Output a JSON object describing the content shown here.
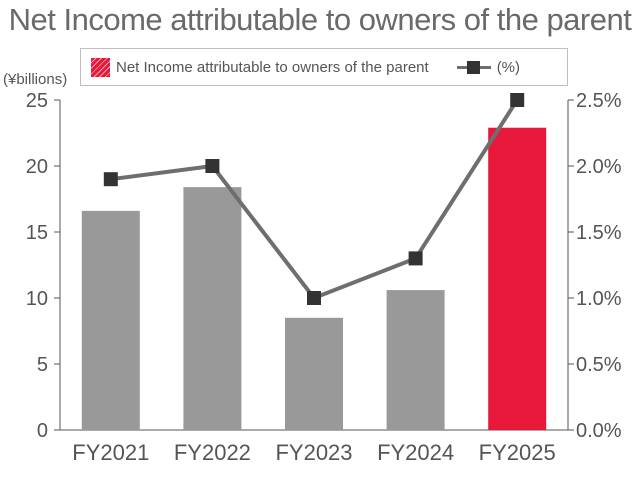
{
  "chart_data": {
    "type": "bar",
    "title": "Net Income attributable to owners of the parent",
    "ylabel": "(¥billions)",
    "categories": [
      "FY2021",
      "FY2022",
      "FY2023",
      "FY2024",
      "FY2025"
    ],
    "ylim": [
      0,
      25
    ],
    "y_ticks": [
      "0",
      "5",
      "10",
      "15",
      "20",
      "25"
    ],
    "y2lim": [
      0,
      2.5
    ],
    "y2_ticks": [
      "0.0%",
      "0.5%",
      "1.0%",
      "1.5%",
      "2.0%",
      "2.5%"
    ],
    "grid": false,
    "legend_position": "top",
    "series": [
      {
        "name": "Net Income attributable to owners of the parent",
        "type": "bar",
        "axis": "left",
        "values": [
          16.6,
          18.4,
          8.5,
          10.6,
          22.9
        ],
        "colors": [
          "#999999",
          "#999999",
          "#999999",
          "#999999",
          "#e8183a"
        ]
      },
      {
        "name": "(%)",
        "type": "line",
        "axis": "right",
        "values": [
          1.9,
          2.0,
          1.0,
          1.3,
          2.5
        ],
        "line_color": "#6e6e6e",
        "marker_color": "#333333"
      }
    ]
  }
}
